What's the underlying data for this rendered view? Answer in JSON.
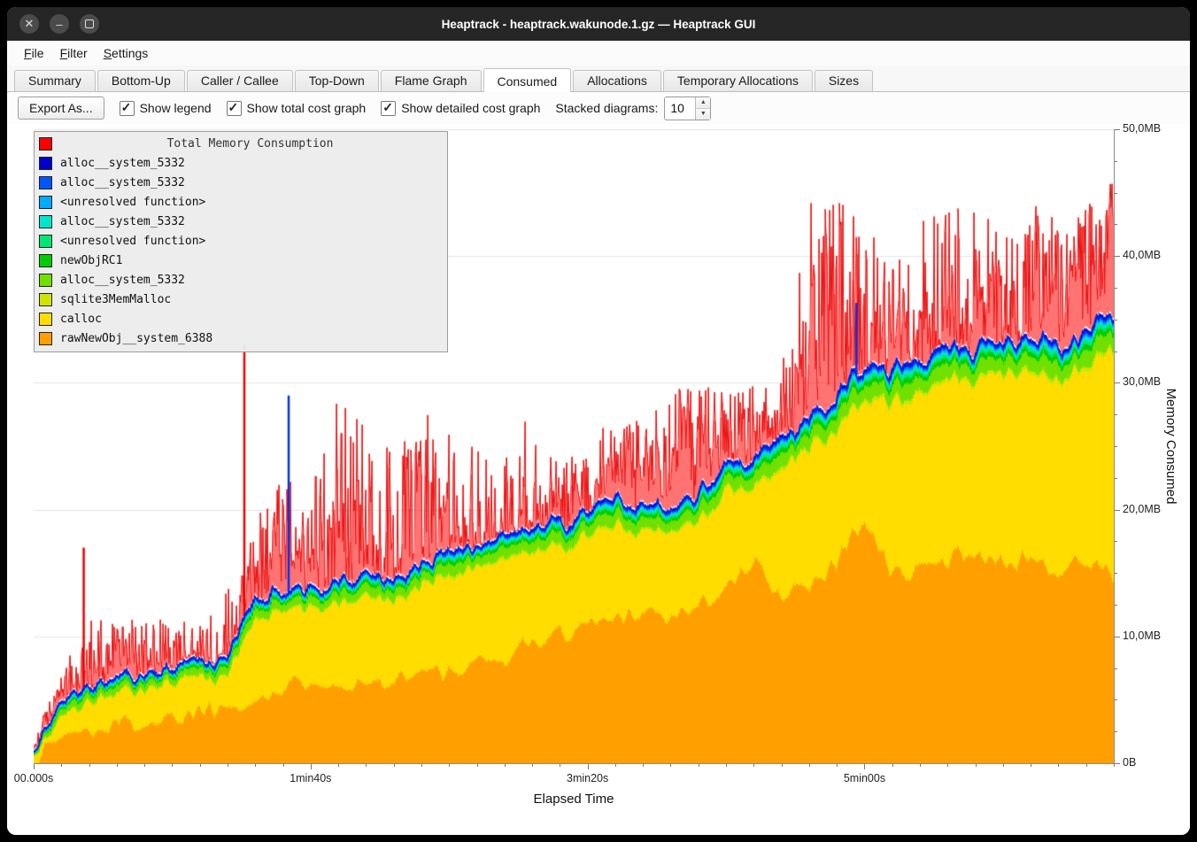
{
  "window": {
    "title": "Heaptrack - heaptrack.wakunode.1.gz — Heaptrack GUI"
  },
  "menu": {
    "items": [
      {
        "label": "File",
        "mnemonic": 0
      },
      {
        "label": "Filter",
        "mnemonic": 0
      },
      {
        "label": "Settings",
        "mnemonic": 0
      }
    ]
  },
  "tabs": {
    "items": [
      {
        "label": "Summary",
        "active": false
      },
      {
        "label": "Bottom-Up",
        "active": false
      },
      {
        "label": "Caller / Callee",
        "active": false
      },
      {
        "label": "Top-Down",
        "active": false
      },
      {
        "label": "Flame Graph",
        "active": false
      },
      {
        "label": "Consumed",
        "active": true
      },
      {
        "label": "Allocations",
        "active": false
      },
      {
        "label": "Temporary Allocations",
        "active": false
      },
      {
        "label": "Sizes",
        "active": false
      }
    ]
  },
  "toolbar": {
    "export_label": "Export As...",
    "checkboxes": [
      {
        "label": "Show legend",
        "checked": true
      },
      {
        "label": "Show total cost graph",
        "checked": true
      },
      {
        "label": "Show detailed cost graph",
        "checked": true
      }
    ],
    "stacked_label": "Stacked diagrams:",
    "stacked_value": "10"
  },
  "legend": {
    "title": "Total Memory Consumption",
    "title_color": "#ff0000",
    "items": [
      {
        "label": "alloc__system_5332",
        "color": "#0000cc"
      },
      {
        "label": "alloc__system_5332",
        "color": "#0055ff"
      },
      {
        "label": "<unresolved function>",
        "color": "#00aaff"
      },
      {
        "label": "alloc__system_5332",
        "color": "#00e6cc"
      },
      {
        "label": "<unresolved function>",
        "color": "#00e673"
      },
      {
        "label": "newObjRC1",
        "color": "#00cc00"
      },
      {
        "label": "alloc__system_5332",
        "color": "#70e000"
      },
      {
        "label": "sqlite3MemMalloc",
        "color": "#cce600"
      },
      {
        "label": "calloc",
        "color": "#ffdd00"
      },
      {
        "label": "rawNewObj__system_6388",
        "color": "#ffa000"
      }
    ]
  },
  "axes": {
    "x_label": "Elapsed Time",
    "y_label": "Memory Consumed",
    "x_ticks": [
      {
        "t": 0,
        "label": "00.000s"
      },
      {
        "t": 100,
        "label": "1min40s"
      },
      {
        "t": 200,
        "label": "3min20s"
      },
      {
        "t": 300,
        "label": "5min00s"
      }
    ],
    "y_ticks": [
      {
        "v": 0,
        "label": "0B"
      },
      {
        "v": 10,
        "label": "10,0MB"
      },
      {
        "v": 20,
        "label": "20,0MB"
      },
      {
        "v": 30,
        "label": "30,0MB"
      },
      {
        "v": 40,
        "label": "40,0MB"
      },
      {
        "v": 50,
        "label": "50,0MB"
      }
    ]
  },
  "chart_data": {
    "type": "area",
    "stacked": true,
    "title": "Total Memory Consumption",
    "xlabel": "Elapsed Time",
    "ylabel": "Memory Consumed",
    "x_max": 390,
    "y_max": 50,
    "noise_seed": 1337,
    "x_samples": [
      0,
      10,
      20,
      30,
      40,
      50,
      60,
      70,
      80,
      90,
      100,
      110,
      120,
      130,
      140,
      150,
      160,
      170,
      180,
      190,
      200,
      210,
      220,
      230,
      240,
      250,
      260,
      270,
      280,
      290,
      300,
      310,
      320,
      330,
      340,
      350,
      360,
      370,
      380,
      390
    ],
    "bottom_series": [
      {
        "name": "rawNewObj__system_6388",
        "color": "#ffa000",
        "values": [
          0.3,
          2.2,
          2.6,
          3.0,
          3.3,
          3.6,
          4.2,
          4.6,
          5.2,
          5.6,
          6.8,
          6.5,
          6.2,
          6.8,
          7.2,
          7.0,
          7.6,
          8.4,
          9.6,
          10.2,
          11.0,
          11.5,
          12.2,
          11.4,
          12.6,
          13.6,
          15.8,
          13.4,
          14.2,
          16.0,
          19.5,
          14.8,
          15.2,
          16.0,
          17.0,
          15.5,
          16.5,
          15.2,
          16.0,
          14.8
        ]
      },
      {
        "name": "calloc",
        "color": "#ffdd00",
        "values": [
          0.2,
          1.2,
          2.2,
          2.4,
          2.5,
          2.8,
          2.5,
          2.3,
          6.5,
          6.4,
          5.6,
          6.1,
          6.9,
          6.1,
          6.6,
          7.8,
          7.8,
          7.5,
          7.1,
          6.9,
          6.8,
          7.2,
          6.1,
          6.8,
          6.6,
          7.6,
          6.0,
          9.8,
          10.7,
          10.1,
          9.3,
          13.4,
          13.6,
          14.0,
          13.2,
          14.9,
          14.7,
          15.0,
          15.2,
          17.8
        ]
      }
    ],
    "thin_total": {
      "values": [
        0.3,
        1.1,
        1.2,
        1.2,
        1.2,
        1.3,
        1.3,
        1.3,
        1.6,
        1.6,
        1.6,
        1.7,
        1.7,
        1.7,
        1.7,
        1.8,
        1.8,
        1.9,
        1.9,
        1.9,
        2.0,
        2.0,
        2.0,
        2.0,
        2.1,
        2.2,
        2.2,
        2.3,
        2.4,
        2.5,
        2.7,
        2.7,
        2.7,
        2.8,
        2.8,
        2.8,
        2.8,
        2.8,
        2.8,
        2.9
      ]
    },
    "thin_series": [
      {
        "name": "sqlite3MemMalloc",
        "color": "#cce600",
        "fraction": 0.1
      },
      {
        "name": "alloc__system_5332",
        "color": "#70e000",
        "fraction": 0.42
      },
      {
        "name": "newObjRC1",
        "color": "#00cc00",
        "fraction": 0.14
      },
      {
        "name": "<unresolved function>",
        "color": "#00e673",
        "fraction": 0.09
      },
      {
        "name": "alloc__system_5332",
        "color": "#00e6cc",
        "fraction": 0.08
      },
      {
        "name": "<unresolved function>",
        "color": "#00aaff",
        "fraction": 0.05
      },
      {
        "name": "alloc__system_5332",
        "color": "#0055ff",
        "fraction": 0.06
      },
      {
        "name": "alloc__system_5332",
        "color": "#0000cc",
        "fraction": 0.06
      }
    ],
    "total_series": {
      "name": "Total Memory Consumption",
      "color": "#ff0000",
      "envelope": [
        2.5,
        7,
        12,
        11,
        12.5,
        11,
        11.5,
        14,
        20,
        23,
        22,
        29,
        27,
        25,
        28,
        26,
        25,
        24,
        29,
        24,
        26,
        27,
        27,
        29,
        31,
        29,
        30,
        32,
        44,
        46,
        43,
        39,
        43,
        45,
        44,
        42,
        45,
        43,
        44,
        46
      ]
    },
    "events": {
      "red_spikes": [
        {
          "t": 18,
          "v": 17
        },
        {
          "t": 76,
          "v": 33
        }
      ],
      "blue_spikes": [
        {
          "t": 92,
          "v": 29
        },
        {
          "t": 297,
          "v": 36.3
        }
      ]
    }
  }
}
